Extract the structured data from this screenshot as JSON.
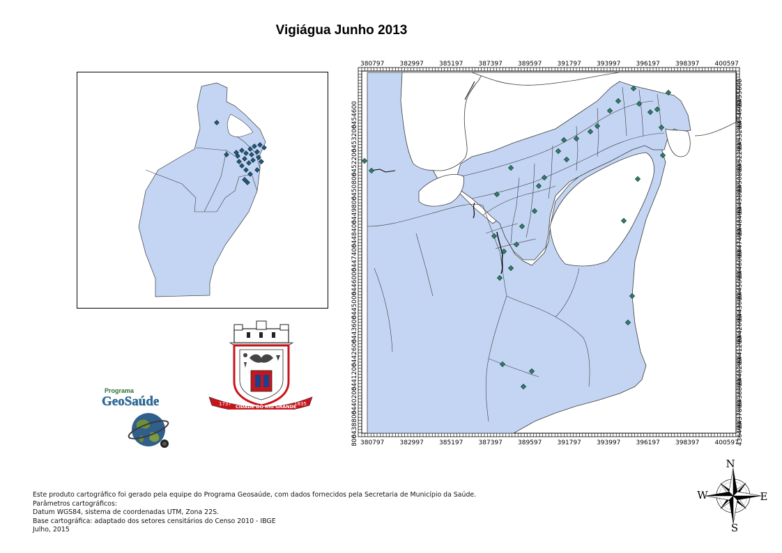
{
  "map": {
    "title": "Vigiágua Junho 2013",
    "x_ticks": [
      "380797",
      "382997",
      "385197",
      "387397",
      "389597",
      "391797",
      "393997",
      "396197",
      "398397",
      "400597"
    ],
    "y_ticks_left": [
      "6454600",
      "6453200",
      "6452200",
      "6450800",
      "6449800",
      "6448400",
      "6447400",
      "6446000",
      "6445000",
      "6443600",
      "6442600",
      "6441200",
      "6440200",
      "6438800",
      "6437800"
    ],
    "y_ticks_right": [
      "6455600",
      "6454600",
      "6453200",
      "6452200",
      "6450800",
      "6449800",
      "6448400",
      "6447400",
      "6446000",
      "6445000",
      "6443600",
      "6442600",
      "6441200",
      "6440200",
      "6438800",
      "6437800",
      "6436400"
    ],
    "colors": {
      "land": "#c4d5f4",
      "water": "#ffffff",
      "outline": "#3a3a3a",
      "point_fill": "#2e7d6b",
      "inset_point_fill": "#1f5a7a"
    }
  },
  "logos": {
    "geosaude_line1": "Programa",
    "geosaude_line2": "GeoSaúde",
    "emblem_ribbon_left": "1737",
    "emblem_ribbon_center": "CIDADE DO RIO GRANDE",
    "emblem_ribbon_right": "1835"
  },
  "compass": {
    "n": "N",
    "s": "S",
    "e": "E",
    "w": "W"
  },
  "credits": {
    "line1": "Este produto cartográfico foi gerado pela equipe do Programa Geosaúde, com dados fornecidos pela Secretaria de Município da Saúde.",
    "line2": "Parâmetros cartográficos:",
    "line3": "Datum WGS84, sistema de coordenadas UTM, Zona 22S.",
    "line4": "Base cartográfica: adaptado dos setores censitários do Censo 2010 - IBGE",
    "line5": "Julho, 2015"
  }
}
